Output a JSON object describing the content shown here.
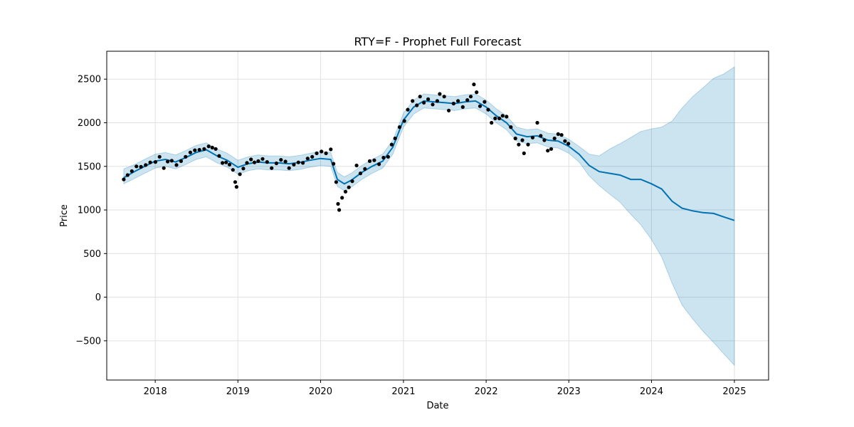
{
  "chart_data": {
    "type": "line",
    "title": "RTY=F - Prophet Full Forecast",
    "xlabel": "Date",
    "ylabel": "Price",
    "xlim": [
      "2017-06-01",
      "2025-06-01"
    ],
    "ylim": [
      -950,
      2820
    ],
    "grid": true,
    "x_ticks": [
      "2018",
      "2019",
      "2020",
      "2021",
      "2022",
      "2023",
      "2024",
      "2025"
    ],
    "y_ticks": [
      -500,
      0,
      500,
      1000,
      1500,
      2000,
      2500
    ],
    "colors": {
      "actual": "#000000",
      "forecast": "#0072B2",
      "interval": "#0072B2",
      "grid": "#e0e0e0"
    },
    "series": [
      {
        "role": "actual",
        "style": "points",
        "points": [
          [
            "2017-08-15",
            1350
          ],
          [
            "2017-09-01",
            1400
          ],
          [
            "2017-09-20",
            1445
          ],
          [
            "2017-10-10",
            1500
          ],
          [
            "2017-10-30",
            1495
          ],
          [
            "2017-11-20",
            1515
          ],
          [
            "2017-12-10",
            1545
          ],
          [
            "2018-01-02",
            1550
          ],
          [
            "2018-01-20",
            1610
          ],
          [
            "2018-02-08",
            1480
          ],
          [
            "2018-02-25",
            1555
          ],
          [
            "2018-03-15",
            1565
          ],
          [
            "2018-04-05",
            1515
          ],
          [
            "2018-04-25",
            1560
          ],
          [
            "2018-05-15",
            1610
          ],
          [
            "2018-06-05",
            1660
          ],
          [
            "2018-06-25",
            1685
          ],
          [
            "2018-07-15",
            1690
          ],
          [
            "2018-08-05",
            1700
          ],
          [
            "2018-08-25",
            1730
          ],
          [
            "2018-09-10",
            1715
          ],
          [
            "2018-09-25",
            1700
          ],
          [
            "2018-10-10",
            1620
          ],
          [
            "2018-10-25",
            1540
          ],
          [
            "2018-11-10",
            1545
          ],
          [
            "2018-11-25",
            1520
          ],
          [
            "2018-12-10",
            1460
          ],
          [
            "2018-12-20",
            1320
          ],
          [
            "2018-12-26",
            1265
          ],
          [
            "2019-01-10",
            1410
          ],
          [
            "2019-01-25",
            1475
          ],
          [
            "2019-02-10",
            1540
          ],
          [
            "2019-02-28",
            1580
          ],
          [
            "2019-03-15",
            1545
          ],
          [
            "2019-04-01",
            1560
          ],
          [
            "2019-04-20",
            1585
          ],
          [
            "2019-05-10",
            1550
          ],
          [
            "2019-05-30",
            1480
          ],
          [
            "2019-06-20",
            1535
          ],
          [
            "2019-07-10",
            1575
          ],
          [
            "2019-07-30",
            1555
          ],
          [
            "2019-08-15",
            1480
          ],
          [
            "2019-09-05",
            1520
          ],
          [
            "2019-09-25",
            1545
          ],
          [
            "2019-10-15",
            1540
          ],
          [
            "2019-11-05",
            1590
          ],
          [
            "2019-11-25",
            1610
          ],
          [
            "2019-12-15",
            1650
          ],
          [
            "2020-01-05",
            1670
          ],
          [
            "2020-01-25",
            1650
          ],
          [
            "2020-02-15",
            1695
          ],
          [
            "2020-02-27",
            1530
          ],
          [
            "2020-03-10",
            1320
          ],
          [
            "2020-03-18",
            1070
          ],
          [
            "2020-03-23",
            1000
          ],
          [
            "2020-04-05",
            1140
          ],
          [
            "2020-04-20",
            1210
          ],
          [
            "2020-05-05",
            1260
          ],
          [
            "2020-05-20",
            1330
          ],
          [
            "2020-06-08",
            1510
          ],
          [
            "2020-06-25",
            1420
          ],
          [
            "2020-07-15",
            1470
          ],
          [
            "2020-08-05",
            1560
          ],
          [
            "2020-08-25",
            1570
          ],
          [
            "2020-09-15",
            1525
          ],
          [
            "2020-10-05",
            1600
          ],
          [
            "2020-10-25",
            1610
          ],
          [
            "2020-11-10",
            1750
          ],
          [
            "2020-11-25",
            1820
          ],
          [
            "2020-12-15",
            1950
          ],
          [
            "2021-01-05",
            2020
          ],
          [
            "2021-01-20",
            2150
          ],
          [
            "2021-02-10",
            2250
          ],
          [
            "2021-03-01",
            2200
          ],
          [
            "2021-03-15",
            2300
          ],
          [
            "2021-04-01",
            2230
          ],
          [
            "2021-04-20",
            2270
          ],
          [
            "2021-05-10",
            2210
          ],
          [
            "2021-05-30",
            2250
          ],
          [
            "2021-06-10",
            2330
          ],
          [
            "2021-06-30",
            2300
          ],
          [
            "2021-07-20",
            2140
          ],
          [
            "2021-08-10",
            2220
          ],
          [
            "2021-08-30",
            2250
          ],
          [
            "2021-09-20",
            2180
          ],
          [
            "2021-10-10",
            2260
          ],
          [
            "2021-10-25",
            2300
          ],
          [
            "2021-11-08",
            2440
          ],
          [
            "2021-11-20",
            2350
          ],
          [
            "2021-12-05",
            2190
          ],
          [
            "2021-12-25",
            2240
          ],
          [
            "2022-01-10",
            2150
          ],
          [
            "2022-01-25",
            2000
          ],
          [
            "2022-02-10",
            2050
          ],
          [
            "2022-02-28",
            2050
          ],
          [
            "2022-03-15",
            2080
          ],
          [
            "2022-04-01",
            2070
          ],
          [
            "2022-04-20",
            1950
          ],
          [
            "2022-05-10",
            1820
          ],
          [
            "2022-05-25",
            1750
          ],
          [
            "2022-06-10",
            1800
          ],
          [
            "2022-06-17",
            1650
          ],
          [
            "2022-07-05",
            1750
          ],
          [
            "2022-07-25",
            1830
          ],
          [
            "2022-08-15",
            2000
          ],
          [
            "2022-08-30",
            1850
          ],
          [
            "2022-09-15",
            1800
          ],
          [
            "2022-09-30",
            1680
          ],
          [
            "2022-10-15",
            1700
          ],
          [
            "2022-10-30",
            1820
          ],
          [
            "2022-11-15",
            1870
          ],
          [
            "2022-11-30",
            1860
          ],
          [
            "2022-12-15",
            1790
          ],
          [
            "2022-12-30",
            1760
          ]
        ]
      },
      {
        "role": "forecast",
        "style": "line",
        "points": [
          [
            "2017-08-15",
            1370
          ],
          [
            "2017-10-01",
            1440
          ],
          [
            "2017-11-15",
            1500
          ],
          [
            "2018-01-01",
            1560
          ],
          [
            "2018-02-15",
            1580
          ],
          [
            "2018-04-01",
            1550
          ],
          [
            "2018-05-15",
            1600
          ],
          [
            "2018-07-01",
            1660
          ],
          [
            "2018-08-15",
            1690
          ],
          [
            "2018-10-01",
            1620
          ],
          [
            "2018-11-15",
            1570
          ],
          [
            "2019-01-01",
            1490
          ],
          [
            "2019-02-15",
            1530
          ],
          [
            "2019-04-01",
            1550
          ],
          [
            "2019-05-15",
            1540
          ],
          [
            "2019-07-01",
            1540
          ],
          [
            "2019-08-15",
            1530
          ],
          [
            "2019-10-01",
            1545
          ],
          [
            "2019-11-15",
            1570
          ],
          [
            "2020-01-01",
            1590
          ],
          [
            "2020-02-15",
            1580
          ],
          [
            "2020-03-15",
            1350
          ],
          [
            "2020-04-15",
            1300
          ],
          [
            "2020-05-15",
            1340
          ],
          [
            "2020-07-01",
            1430
          ],
          [
            "2020-08-15",
            1500
          ],
          [
            "2020-10-01",
            1560
          ],
          [
            "2020-11-15",
            1720
          ],
          [
            "2021-01-01",
            2030
          ],
          [
            "2021-02-15",
            2180
          ],
          [
            "2021-04-01",
            2250
          ],
          [
            "2021-05-15",
            2240
          ],
          [
            "2021-07-01",
            2230
          ],
          [
            "2021-08-15",
            2220
          ],
          [
            "2021-10-01",
            2240
          ],
          [
            "2021-11-15",
            2250
          ],
          [
            "2022-01-01",
            2180
          ],
          [
            "2022-02-15",
            2080
          ],
          [
            "2022-04-01",
            2000
          ],
          [
            "2022-05-15",
            1870
          ],
          [
            "2022-07-01",
            1840
          ],
          [
            "2022-08-15",
            1850
          ],
          [
            "2022-10-01",
            1800
          ],
          [
            "2022-11-15",
            1790
          ],
          [
            "2023-01-01",
            1730
          ],
          [
            "2023-02-15",
            1640
          ],
          [
            "2023-04-01",
            1510
          ],
          [
            "2023-05-15",
            1440
          ],
          [
            "2023-07-01",
            1420
          ],
          [
            "2023-08-15",
            1400
          ],
          [
            "2023-10-01",
            1350
          ],
          [
            "2023-11-15",
            1350
          ],
          [
            "2024-01-01",
            1300
          ],
          [
            "2024-02-15",
            1240
          ],
          [
            "2024-04-01",
            1100
          ],
          [
            "2024-05-15",
            1020
          ],
          [
            "2024-07-01",
            990
          ],
          [
            "2024-08-15",
            970
          ],
          [
            "2024-10-01",
            960
          ],
          [
            "2024-11-15",
            920
          ],
          [
            "2025-01-01",
            880
          ]
        ]
      },
      {
        "role": "interval",
        "style": "band",
        "points": [
          [
            "2017-08-15",
            1300,
            1470
          ],
          [
            "2017-10-01",
            1360,
            1520
          ],
          [
            "2017-11-15",
            1420,
            1580
          ],
          [
            "2018-01-01",
            1480,
            1640
          ],
          [
            "2018-02-15",
            1500,
            1660
          ],
          [
            "2018-04-01",
            1470,
            1630
          ],
          [
            "2018-05-15",
            1520,
            1680
          ],
          [
            "2018-07-01",
            1580,
            1740
          ],
          [
            "2018-08-15",
            1610,
            1770
          ],
          [
            "2018-10-01",
            1540,
            1700
          ],
          [
            "2018-11-15",
            1490,
            1650
          ],
          [
            "2019-01-01",
            1410,
            1570
          ],
          [
            "2019-02-15",
            1450,
            1610
          ],
          [
            "2019-04-01",
            1470,
            1630
          ],
          [
            "2019-05-15",
            1460,
            1620
          ],
          [
            "2019-07-01",
            1460,
            1620
          ],
          [
            "2019-08-15",
            1450,
            1610
          ],
          [
            "2019-10-01",
            1465,
            1625
          ],
          [
            "2019-11-15",
            1490,
            1650
          ],
          [
            "2020-01-01",
            1510,
            1670
          ],
          [
            "2020-02-15",
            1500,
            1660
          ],
          [
            "2020-03-15",
            1270,
            1430
          ],
          [
            "2020-04-15",
            1220,
            1380
          ],
          [
            "2020-05-15",
            1260,
            1420
          ],
          [
            "2020-07-01",
            1350,
            1510
          ],
          [
            "2020-08-15",
            1420,
            1580
          ],
          [
            "2020-10-01",
            1480,
            1640
          ],
          [
            "2020-11-15",
            1640,
            1800
          ],
          [
            "2021-01-01",
            1950,
            2110
          ],
          [
            "2021-02-15",
            2100,
            2260
          ],
          [
            "2021-04-01",
            2170,
            2330
          ],
          [
            "2021-05-15",
            2160,
            2320
          ],
          [
            "2021-07-01",
            2150,
            2310
          ],
          [
            "2021-08-15",
            2140,
            2300
          ],
          [
            "2021-10-01",
            2160,
            2320
          ],
          [
            "2021-11-15",
            2170,
            2330
          ],
          [
            "2022-01-01",
            2100,
            2260
          ],
          [
            "2022-02-15",
            2000,
            2160
          ],
          [
            "2022-04-01",
            1920,
            2080
          ],
          [
            "2022-05-15",
            1790,
            1950
          ],
          [
            "2022-07-01",
            1760,
            1920
          ],
          [
            "2022-08-15",
            1770,
            1930
          ],
          [
            "2022-10-01",
            1720,
            1880
          ],
          [
            "2022-11-15",
            1710,
            1870
          ],
          [
            "2023-01-01",
            1650,
            1810
          ],
          [
            "2023-02-15",
            1550,
            1730
          ],
          [
            "2023-04-01",
            1390,
            1640
          ],
          [
            "2023-05-15",
            1280,
            1620
          ],
          [
            "2023-07-01",
            1180,
            1700
          ],
          [
            "2023-08-15",
            1090,
            1760
          ],
          [
            "2023-10-01",
            950,
            1830
          ],
          [
            "2023-11-15",
            830,
            1900
          ],
          [
            "2024-01-01",
            660,
            1930
          ],
          [
            "2024-02-15",
            460,
            1950
          ],
          [
            "2024-04-01",
            160,
            2020
          ],
          [
            "2024-05-15",
            -90,
            2170
          ],
          [
            "2024-07-01",
            -250,
            2300
          ],
          [
            "2024-08-15",
            -390,
            2400
          ],
          [
            "2024-10-01",
            -520,
            2510
          ],
          [
            "2024-11-15",
            -650,
            2560
          ],
          [
            "2025-01-01",
            -780,
            2640
          ]
        ]
      }
    ]
  }
}
